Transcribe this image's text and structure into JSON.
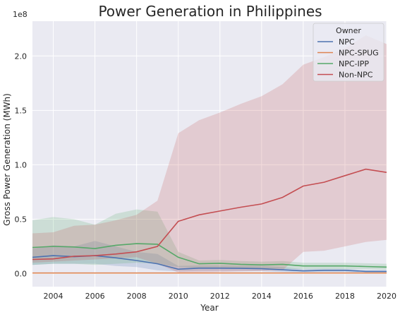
{
  "chart_data": {
    "type": "line",
    "title": "Power Generation in Philippines",
    "xlabel": "Year",
    "ylabel": "Gross Power Generation (MWh)",
    "y_multiplier_label": "1e8",
    "xlim": [
      2003,
      2020
    ],
    "ylim": [
      -12000000,
      232000000
    ],
    "x_ticks": [
      2004,
      2006,
      2008,
      2010,
      2012,
      2014,
      2016,
      2018,
      2020
    ],
    "y_ticks": [
      0,
      50000000,
      100000000,
      150000000,
      200000000
    ],
    "y_tick_labels": [
      "0.0",
      "0.5",
      "1.0",
      "1.5",
      "2.0"
    ],
    "grid": true,
    "legend": {
      "title": "Owner",
      "placement": "top-right"
    },
    "x": [
      2003,
      2004,
      2005,
      2006,
      2007,
      2008,
      2009,
      2010,
      2011,
      2012,
      2013,
      2014,
      2015,
      2016,
      2017,
      2018,
      2019,
      2020
    ],
    "series": [
      {
        "name": "NPC",
        "color": "#4c72b0",
        "values": [
          15000000,
          16500000,
          15500000,
          16500000,
          14500000,
          12000000,
          9000000,
          4000000,
          5000000,
          5000000,
          4800000,
          4500000,
          3500000,
          2500000,
          3000000,
          3000000,
          2000000,
          2000000
        ],
        "band_low": [
          8000000,
          9000000,
          9000000,
          9000000,
          7000000,
          6000000,
          3000000,
          2000000,
          2500000,
          2500000,
          2500000,
          2300000,
          1500000,
          1200000,
          1500000,
          1500000,
          1000000,
          1000000
        ],
        "band_high": [
          23000000,
          26000000,
          25000000,
          30000000,
          25000000,
          20000000,
          18000000,
          7000000,
          7500000,
          7500000,
          7200000,
          7000000,
          6000000,
          4000000,
          4500000,
          4500000,
          3000000,
          3000000
        ]
      },
      {
        "name": "NPC-SPUG",
        "color": "#dd8452",
        "values": [
          500000,
          500000,
          500000,
          500000,
          500000,
          500000,
          500000,
          500000,
          500000,
          500000,
          500000,
          500000,
          500000,
          500000,
          500000,
          500000,
          500000,
          500000
        ],
        "band_low": [
          0,
          0,
          0,
          0,
          0,
          0,
          0,
          0,
          0,
          0,
          0,
          0,
          0,
          0,
          0,
          0,
          0,
          0
        ],
        "band_high": [
          1000000,
          1000000,
          1000000,
          1000000,
          1000000,
          1000000,
          1000000,
          1000000,
          1000000,
          1000000,
          1000000,
          1000000,
          1000000,
          1000000,
          1000000,
          1000000,
          1000000,
          1000000
        ]
      },
      {
        "name": "NPC-IPP",
        "color": "#55a868",
        "values": [
          24000000,
          25000000,
          24500000,
          23000000,
          26000000,
          27500000,
          27000000,
          15000000,
          9000000,
          9500000,
          8500000,
          8000000,
          8500000,
          7000000,
          7000000,
          7000000,
          6500000,
          6000000
        ],
        "band_low": [
          8000000,
          9000000,
          9000000,
          8000000,
          9000000,
          10000000,
          9000000,
          6000000,
          5000000,
          5000000,
          4500000,
          4500000,
          4500000,
          4000000,
          4000000,
          4000000,
          4000000,
          3500000
        ],
        "band_high": [
          49000000,
          52000000,
          50000000,
          45000000,
          55000000,
          59000000,
          57000000,
          20000000,
          12000000,
          12500000,
          11500000,
          11000000,
          11500000,
          10000000,
          10000000,
          10000000,
          9500000,
          9000000
        ]
      },
      {
        "name": "Non-NPC",
        "color": "#c44e52",
        "values": [
          13000000,
          13500000,
          16000000,
          16500000,
          18000000,
          20000000,
          25000000,
          48000000,
          54000000,
          57500000,
          61000000,
          64000000,
          70000000,
          80500000,
          84000000,
          90000000,
          96000000,
          93000000
        ],
        "band_low": [
          10000000,
          11000000,
          12000000,
          13000000,
          14000000,
          15000000,
          9000000,
          1000000,
          1200000,
          1500000,
          2000000,
          2500000,
          3000000,
          20000000,
          21000000,
          25000000,
          29000000,
          31000000
        ],
        "band_high": [
          37000000,
          38000000,
          44000000,
          45000000,
          49000000,
          54000000,
          67000000,
          129000000,
          141000000,
          148000000,
          156000000,
          163000000,
          174000000,
          192000000,
          199000000,
          207000000,
          219000000,
          211000000
        ]
      }
    ]
  }
}
